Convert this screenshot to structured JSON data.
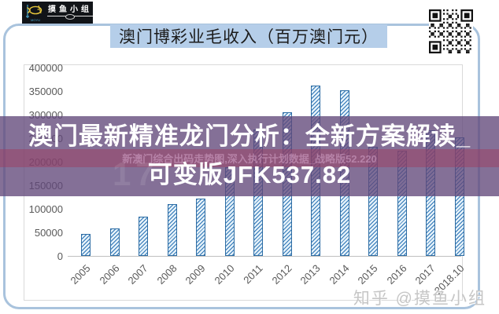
{
  "logo": {
    "brand": "摸鱼小组",
    "sub": "MOYU"
  },
  "header": {
    "title": "澳门博彩业毛收入（百万澳门元）"
  },
  "watermark": {
    "headline_line1": "澳门最新精准龙门分析：全新方案解读_",
    "headline_line2": "可变版JFK537.82",
    "stripe_text": "新澳门综合出码走势图,深入执行计划数据_战略版52.220",
    "faint_number": "17",
    "footer": "知乎 @摸鱼小组"
  },
  "colors": {
    "card_border": "#a9c3dd",
    "title_highlight": "#b5cee9",
    "bar_border": "#2e6da4",
    "bar_hatch": "#2e75b6",
    "bar_fill": "#e4f1f9",
    "overlay_purple": "rgba(97,72,122,0.78)",
    "overlay_stripe": "rgba(158,62,98,0.50)",
    "axis_text": "#595959"
  },
  "chart_data": {
    "type": "bar",
    "title": "澳门博彩业毛收入（百万澳门元）",
    "categories": [
      "2005",
      "2006",
      "2007",
      "2008",
      "2009",
      "2010",
      "2011",
      "2012",
      "2013",
      "2014",
      "2015",
      "2016",
      "2017",
      "2018.10"
    ],
    "values": [
      47000,
      58000,
      84000,
      110000,
      121000,
      189000,
      269000,
      305000,
      362000,
      352000,
      232000,
      223000,
      266000,
      252000
    ],
    "xlabel": "",
    "ylabel": "",
    "ylim": [
      0,
      400000
    ],
    "ytick_step": 50000,
    "yticks": [
      "400000",
      "350000",
      "300000",
      "250000",
      "200000",
      "150000",
      "100000",
      "50000",
      "0"
    ],
    "grid": false,
    "legend": false
  }
}
